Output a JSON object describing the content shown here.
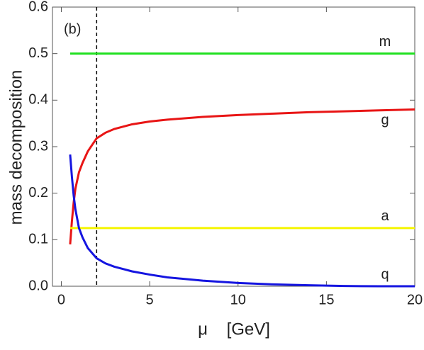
{
  "chart_data": {
    "type": "line",
    "ylabel": "mass decomposition",
    "xlabel": "μ    [GeV]",
    "annotation": "(b)",
    "vline": 2,
    "xlim": [
      -0.5,
      20
    ],
    "ylim": [
      0,
      0.6
    ],
    "xticks": [
      0,
      5,
      10,
      15,
      20
    ],
    "yticks": [
      {
        "value": 0,
        "label": "0.0"
      },
      0.1,
      0.2,
      0.3,
      0.4,
      0.5,
      0.6
    ],
    "series": [
      {
        "name": "m",
        "color": "#1fe01f",
        "x": [
          0.5,
          20
        ],
        "values": [
          0.5,
          0.5
        ]
      },
      {
        "name": "g",
        "color": "#e81515",
        "x": [
          0.5,
          0.6,
          0.7,
          0.8,
          1,
          1.2,
          1.5,
          2,
          2.5,
          3,
          4,
          5,
          6,
          8,
          10,
          12,
          14,
          16,
          18,
          20
        ],
        "values": [
          0.09,
          0.14,
          0.18,
          0.21,
          0.245,
          0.265,
          0.29,
          0.318,
          0.33,
          0.338,
          0.348,
          0.354,
          0.358,
          0.364,
          0.368,
          0.371,
          0.374,
          0.376,
          0.378,
          0.38
        ]
      },
      {
        "name": "a",
        "color": "#f5f500",
        "x": [
          0.5,
          20
        ],
        "values": [
          0.125,
          0.125
        ]
      },
      {
        "name": "q",
        "color": "#1515e0",
        "x": [
          0.5,
          0.6,
          0.7,
          0.8,
          1,
          1.2,
          1.5,
          2,
          2.5,
          3,
          4,
          5,
          6,
          8,
          10,
          12,
          14,
          16,
          18,
          20
        ],
        "values": [
          0.283,
          0.235,
          0.195,
          0.165,
          0.125,
          0.105,
          0.082,
          0.06,
          0.049,
          0.042,
          0.032,
          0.025,
          0.019,
          0.012,
          0.007,
          0.004,
          0.002,
          0.0005,
          0,
          0
        ]
      }
    ]
  }
}
